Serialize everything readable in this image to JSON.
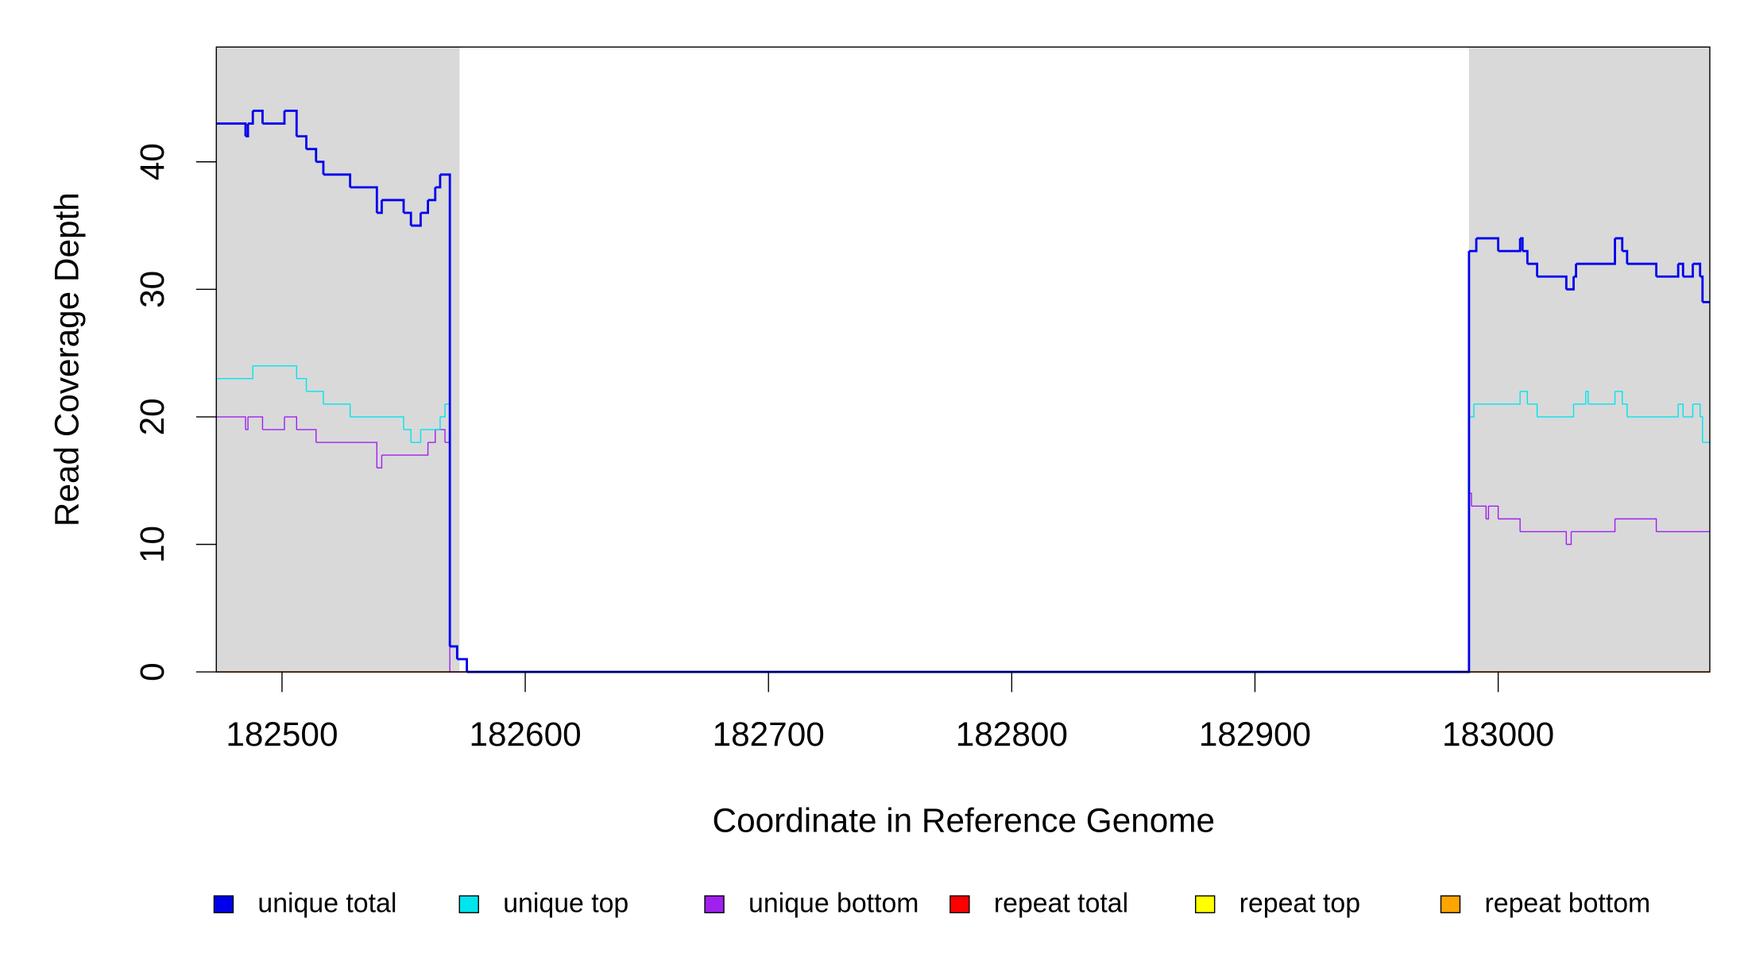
{
  "chart_data": {
    "type": "step",
    "x_label": "Coordinate in Reference Genome",
    "y_label": "Read Coverage Depth",
    "xlim": [
      182473,
      183087
    ],
    "xticks": [
      182500,
      182600,
      182700,
      182800,
      182900,
      183000
    ],
    "ylim": [
      0,
      49
    ],
    "yticks": [
      0,
      10,
      20,
      30,
      40
    ],
    "shaded_regions": [
      [
        182473,
        182573
      ],
      [
        182988,
        183087
      ]
    ],
    "shade_color": "#d9d9d9",
    "series": [
      {
        "name": "unique total",
        "color": "#0000ee",
        "line_width": 2,
        "x": [
          182473,
          182485,
          182486,
          182488,
          182492,
          182501,
          182506,
          182510,
          182514,
          182517,
          182528,
          182539,
          182541,
          182550,
          182553,
          182557,
          182560,
          182563,
          182565,
          182569,
          182572,
          182576,
          182988,
          182991,
          183000,
          183009,
          183010,
          183012,
          183016,
          183028,
          183031,
          183032,
          183048,
          183051,
          183053,
          183065,
          183074,
          183076,
          183080,
          183083,
          183084,
          183087
        ],
        "values": [
          43,
          42,
          43,
          44,
          43,
          44,
          42,
          41,
          40,
          39,
          38,
          36,
          37,
          36,
          35,
          36,
          37,
          38,
          39,
          2,
          1,
          0,
          33,
          34,
          33,
          34,
          33,
          32,
          31,
          30,
          31,
          32,
          34,
          33,
          32,
          31,
          32,
          31,
          32,
          31,
          29,
          29
        ]
      },
      {
        "name": "unique top",
        "color": "#00e5ee",
        "line_width": 1,
        "x": [
          182473,
          182488,
          182506,
          182510,
          182517,
          182528,
          182550,
          182553,
          182557,
          182565,
          182567,
          182569,
          182572,
          182576,
          182988,
          182990,
          183009,
          183012,
          183016,
          183031,
          183036,
          183037,
          183048,
          183051,
          183053,
          183074,
          183076,
          183080,
          183083,
          183084,
          183087
        ],
        "values": [
          23,
          24,
          23,
          22,
          21,
          20,
          19,
          18,
          19,
          20,
          21,
          2,
          1,
          0,
          20,
          21,
          22,
          21,
          20,
          21,
          22,
          21,
          22,
          21,
          20,
          21,
          20,
          21,
          20,
          18,
          18
        ]
      },
      {
        "name": "unique bottom",
        "color": "#a020f0",
        "line_width": 1,
        "x": [
          182473,
          182485,
          182486,
          182492,
          182501,
          182506,
          182514,
          182539,
          182541,
          182560,
          182563,
          182567,
          182569,
          182988,
          182989,
          182995,
          182996,
          183000,
          183009,
          183028,
          183030,
          183048,
          183065,
          183087
        ],
        "values": [
          20,
          19,
          20,
          19,
          20,
          19,
          18,
          16,
          17,
          18,
          19,
          18,
          0,
          14,
          13,
          12,
          13,
          12,
          11,
          10,
          11,
          12,
          11,
          11
        ]
      },
      {
        "name": "repeat total",
        "color": "#ff0000",
        "line_width": 1,
        "x": [
          182473,
          183087
        ],
        "values": [
          0,
          0
        ]
      },
      {
        "name": "repeat top",
        "color": "#ffff00",
        "line_width": 1,
        "x": [
          182473,
          183087
        ],
        "values": [
          0,
          0
        ]
      },
      {
        "name": "repeat bottom",
        "color": "#ffa500",
        "line_width": 1,
        "x": [
          182473,
          183087
        ],
        "values": [
          0,
          0
        ]
      }
    ]
  }
}
